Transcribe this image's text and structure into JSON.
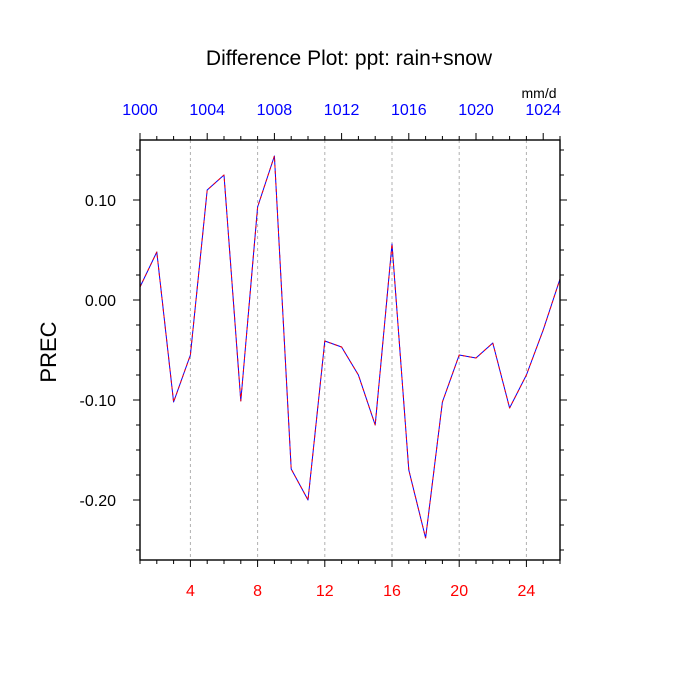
{
  "chart_data": {
    "type": "line",
    "title": "Difference Plot: ppt: rain+snow",
    "ylabel": "PREC",
    "units": "mm/d",
    "xlim": [
      1,
      26
    ],
    "ylim": [
      -0.26,
      0.16
    ],
    "grid": "vertical dashed lines at bottom ticks",
    "x_ticks": [
      4,
      8,
      12,
      16,
      20,
      24
    ],
    "x_tick_labels": [
      "4",
      "8",
      "12",
      "16",
      "20",
      "24"
    ],
    "x_minor_ticks": [
      1,
      2,
      3,
      5,
      6,
      7,
      9,
      10,
      11,
      13,
      14,
      15,
      17,
      18,
      19,
      21,
      22,
      23,
      25,
      26
    ],
    "top_axis": {
      "tick_labels": [
        "1000",
        "1004",
        "1008",
        "1012",
        "1016",
        "1020",
        "1024"
      ],
      "tick_positions": [
        1,
        5,
        9,
        13,
        17,
        21,
        25
      ]
    },
    "y_ticks": [
      0.1,
      0.0,
      -0.1,
      -0.2
    ],
    "y_tick_labels": [
      "0.10",
      "0.00",
      "-0.10",
      "-0.20"
    ],
    "y_minor_ticks": [
      0.15,
      0.125,
      0.075,
      0.05,
      0.025,
      -0.025,
      -0.05,
      -0.075,
      -0.125,
      -0.15,
      -0.175,
      -0.225,
      -0.25
    ],
    "series": [
      {
        "color": "#0000ff",
        "values": [
          [
            1,
            0.013
          ],
          [
            2,
            0.048
          ],
          [
            3,
            -0.102
          ],
          [
            4,
            -0.055
          ],
          [
            5,
            0.11
          ],
          [
            6,
            0.125
          ],
          [
            7,
            -0.101
          ],
          [
            8,
            0.093
          ],
          [
            9,
            0.144
          ],
          [
            10,
            -0.169
          ],
          [
            11,
            -0.2
          ],
          [
            12,
            -0.041
          ],
          [
            13,
            -0.047
          ],
          [
            14,
            -0.075
          ],
          [
            15,
            -0.125
          ],
          [
            16,
            0.056
          ],
          [
            17,
            -0.17
          ],
          [
            18,
            -0.238
          ],
          [
            19,
            -0.102
          ],
          [
            20,
            -0.055
          ],
          [
            21,
            -0.058
          ],
          [
            22,
            -0.043
          ],
          [
            23,
            -0.108
          ],
          [
            24,
            -0.075
          ],
          [
            25,
            -0.03
          ],
          [
            26,
            0.021
          ]
        ]
      },
      {
        "color": "#ff0000",
        "dashed": true,
        "values": [
          [
            1,
            0.013
          ],
          [
            2,
            0.048
          ],
          [
            3,
            -0.102
          ],
          [
            4,
            -0.055
          ],
          [
            5,
            0.11
          ],
          [
            6,
            0.125
          ],
          [
            7,
            -0.101
          ],
          [
            8,
            0.093
          ],
          [
            9,
            0.144
          ],
          [
            10,
            -0.169
          ],
          [
            11,
            -0.2
          ],
          [
            12,
            -0.041
          ],
          [
            13,
            -0.047
          ],
          [
            14,
            -0.075
          ],
          [
            15,
            -0.125
          ],
          [
            16,
            0.056
          ],
          [
            17,
            -0.17
          ],
          [
            18,
            -0.238
          ],
          [
            19,
            -0.102
          ],
          [
            20,
            -0.055
          ],
          [
            21,
            -0.058
          ],
          [
            22,
            -0.043
          ],
          [
            23,
            -0.108
          ],
          [
            24,
            -0.075
          ],
          [
            25,
            -0.03
          ],
          [
            26,
            0.021
          ]
        ]
      }
    ]
  },
  "colors": {
    "bottom_tick_labels": "#ff0000",
    "top_tick_labels": "#0000ff",
    "left_tick_labels": "#000000",
    "grid": "#b0b0b0",
    "axes": "#000000"
  }
}
